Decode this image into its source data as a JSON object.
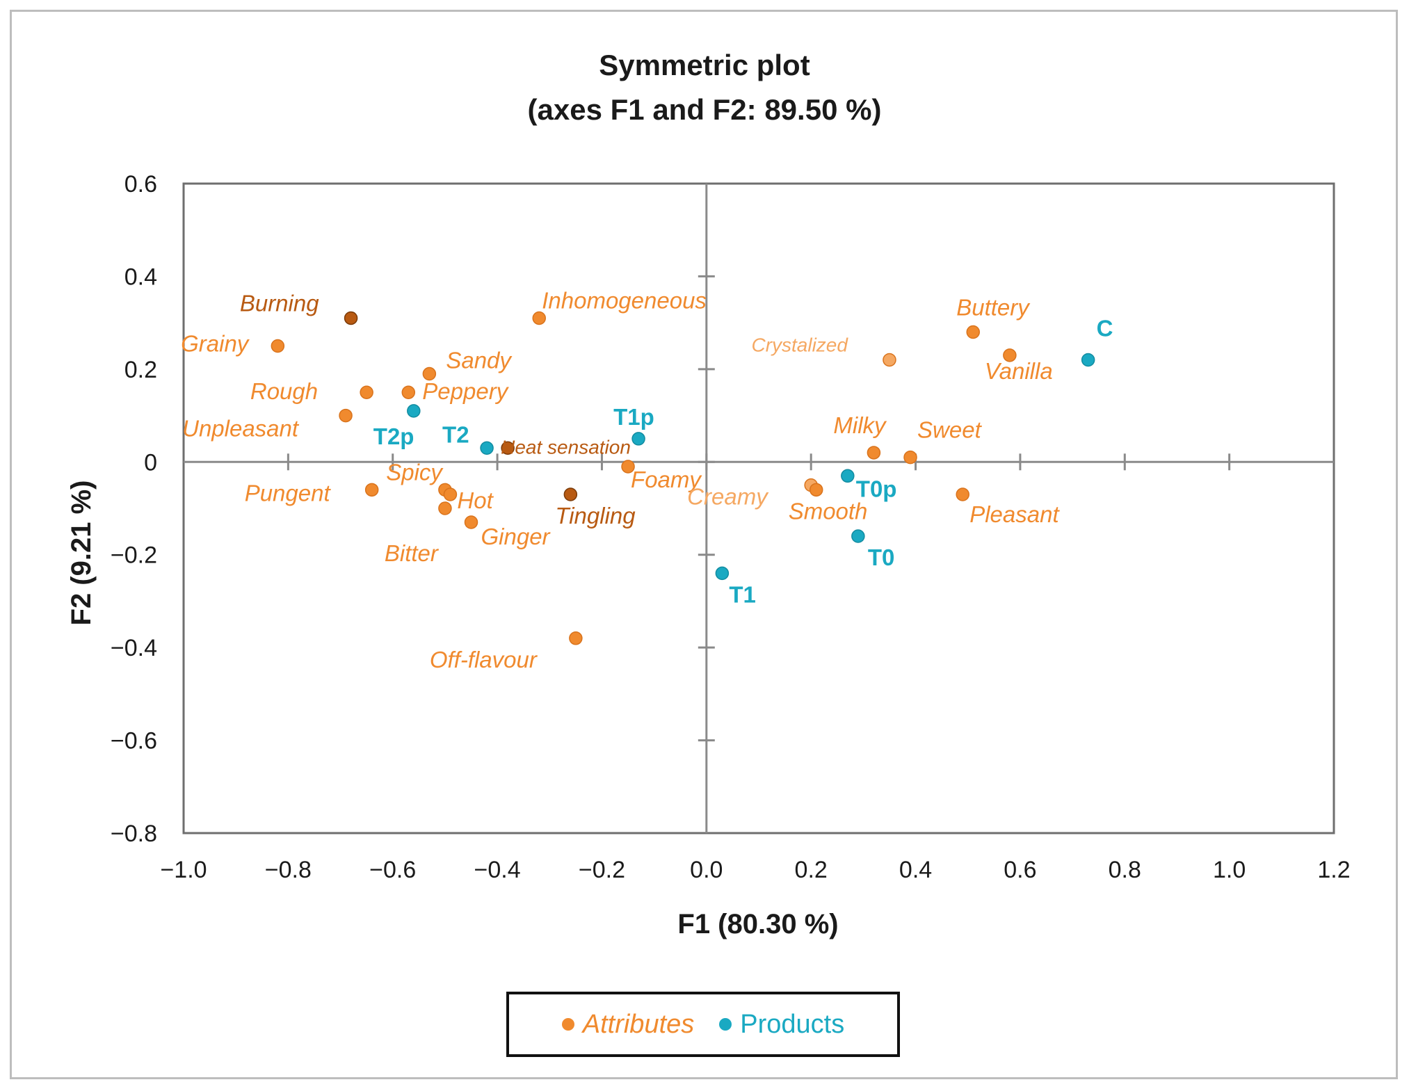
{
  "chart_data": {
    "type": "scatter",
    "title": "Symmetric plot",
    "subtitle": "(axes F1 and F2: 89.50 %)",
    "xlabel": "F1 (80.30 %)",
    "ylabel": "F2 (9.21 %)",
    "xlim": [
      -1.0,
      1.2
    ],
    "ylim": [
      -0.8,
      0.6
    ],
    "xticks": [
      "−1.0",
      "−0.8",
      "−0.6",
      "−0.4",
      "−0.2",
      "0.0",
      "0.2",
      "0.4",
      "0.6",
      "0.8",
      "1.0",
      "1.2"
    ],
    "yticks": [
      "0.6",
      "0.4",
      "0.2",
      "0",
      "−0.2",
      "−0.4",
      "−0.6",
      "−0.8"
    ],
    "legend_position": "bottom-center",
    "colors": {
      "attributes": "#f08a2e",
      "attributes_dark": "#b85a12",
      "attributes_light": "#f5a862",
      "products": "#1aa9c2",
      "axis": "#8a8a8a",
      "frame": "#6e6e6e"
    },
    "series": [
      {
        "name": "Attributes",
        "points": [
          {
            "label": "Burning",
            "x": -0.68,
            "y": 0.31,
            "tone": "dark"
          },
          {
            "label": "Grainy",
            "x": -0.82,
            "y": 0.25,
            "tone": "normal"
          },
          {
            "label": "Inhomogeneous",
            "x": -0.32,
            "y": 0.31,
            "tone": "normal"
          },
          {
            "label": "Sandy",
            "x": -0.53,
            "y": 0.19,
            "tone": "normal"
          },
          {
            "label": "Rough",
            "x": -0.65,
            "y": 0.15,
            "tone": "normal"
          },
          {
            "label": "Peppery",
            "x": -0.57,
            "y": 0.15,
            "tone": "normal"
          },
          {
            "label": "Unpleasant",
            "x": -0.69,
            "y": 0.1,
            "tone": "normal"
          },
          {
            "label": "Heat sensation",
            "x": -0.38,
            "y": 0.03,
            "tone": "dark"
          },
          {
            "label": "Spicy",
            "x": -0.5,
            "y": -0.06,
            "tone": "normal"
          },
          {
            "label": "Pungent",
            "x": -0.64,
            "y": -0.06,
            "tone": "normal"
          },
          {
            "label": "Hot",
            "x": -0.49,
            "y": -0.07,
            "tone": "normal"
          },
          {
            "label": "Bitter",
            "x": -0.5,
            "y": -0.1,
            "tone": "normal"
          },
          {
            "label": "Ginger",
            "x": -0.45,
            "y": -0.13,
            "tone": "normal"
          },
          {
            "label": "Tingling",
            "x": -0.26,
            "y": -0.07,
            "tone": "dark"
          },
          {
            "label": "Foamy",
            "x": -0.15,
            "y": -0.01,
            "tone": "normal"
          },
          {
            "label": "Off-flavour",
            "x": -0.25,
            "y": -0.38,
            "tone": "normal"
          },
          {
            "label": "Creamy",
            "x": 0.2,
            "y": -0.05,
            "tone": "light"
          },
          {
            "label": "Smooth",
            "x": 0.21,
            "y": -0.06,
            "tone": "normal"
          },
          {
            "label": "Crystalized",
            "x": 0.35,
            "y": 0.22,
            "tone": "light"
          },
          {
            "label": "Milky",
            "x": 0.32,
            "y": 0.02,
            "tone": "normal"
          },
          {
            "label": "Sweet",
            "x": 0.39,
            "y": 0.01,
            "tone": "normal"
          },
          {
            "label": "Buttery",
            "x": 0.51,
            "y": 0.28,
            "tone": "normal"
          },
          {
            "label": "Vanilla",
            "x": 0.58,
            "y": 0.23,
            "tone": "normal"
          },
          {
            "label": "Pleasant",
            "x": 0.49,
            "y": -0.07,
            "tone": "normal"
          }
        ]
      },
      {
        "name": "Products",
        "points": [
          {
            "label": "C",
            "x": 0.73,
            "y": 0.22
          },
          {
            "label": "T0p",
            "x": 0.27,
            "y": -0.03
          },
          {
            "label": "T0",
            "x": 0.29,
            "y": -0.16
          },
          {
            "label": "T1",
            "x": 0.03,
            "y": -0.24
          },
          {
            "label": "T1p",
            "x": -0.13,
            "y": 0.05
          },
          {
            "label": "T2",
            "x": -0.42,
            "y": 0.03
          },
          {
            "label": "T2p",
            "x": -0.56,
            "y": 0.11
          }
        ]
      }
    ]
  }
}
